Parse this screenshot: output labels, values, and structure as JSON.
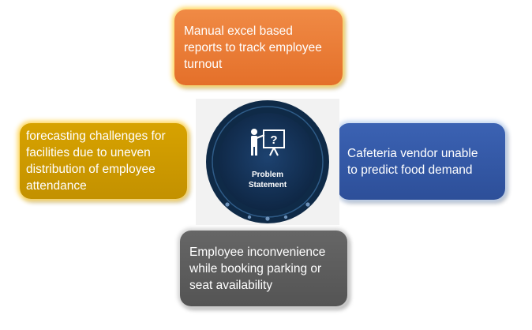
{
  "cards": {
    "top": "Manual excel based\nreports to track employee\nturnout",
    "left": "forecasting challenges for\nfacilities due to uneven\ndistribution of employee\nattendance",
    "right": "Cafeteria vendor unable\nto predict food demand",
    "bottom": "Employee inconvenience\nwhile booking parking or\nseat availability"
  },
  "center": {
    "line1": "Problem",
    "line2": "Statement",
    "icon": "presenter-question-board-icon"
  },
  "colors": {
    "orange": "#e4702a",
    "gold": "#c39100",
    "blue": "#2d4f99",
    "gray": "#545454",
    "navy": "#0f2a47"
  }
}
